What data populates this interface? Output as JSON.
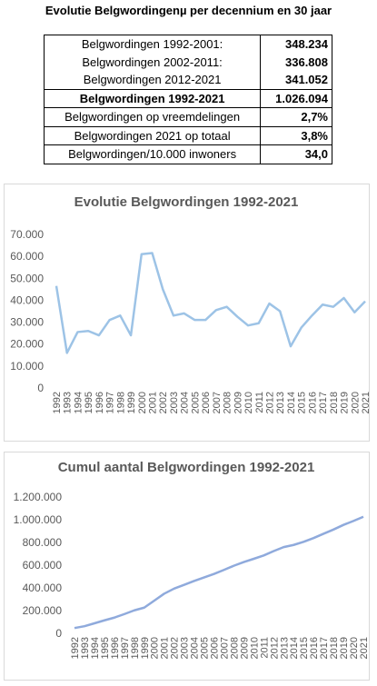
{
  "header": {
    "title": "Evolutie Belgwordingenµ per decennium en 30 jaar"
  },
  "table": {
    "rows": [
      [
        "Belgwordingen 1992-2001:",
        "348.234"
      ],
      [
        "Belgwordingen 2002-2011:",
        "336.808"
      ],
      [
        "Belgwordingen 2012-2021",
        "341.052"
      ],
      [
        "Belgwordingen 1992-2021",
        "1.026.094"
      ],
      [
        "Belgwordingen op vreemdelingen",
        "2,7%"
      ],
      [
        "Belgwordingen 2021 op totaal",
        "3,8%"
      ],
      [
        "Belgwordingen/10.000 inwoners",
        "34,0"
      ]
    ]
  },
  "chart_data": [
    {
      "type": "line",
      "title": "Evolutie Belgwordingen 1992-2021",
      "categories": [
        "1992",
        "1993",
        "1994",
        "1995",
        "1996",
        "1997",
        "1998",
        "1999",
        "2000",
        "2001",
        "2002",
        "2003",
        "2004",
        "2005",
        "2006",
        "2007",
        "2008",
        "2009",
        "2010",
        "2011",
        "2012",
        "2013",
        "2014",
        "2015",
        "2016",
        "2017",
        "2018",
        "2019",
        "2020",
        "2021"
      ],
      "series": [
        {
          "color": "#9dc3e6",
          "values": [
            46500,
            16000,
            25500,
            26000,
            24000,
            31000,
            33000,
            24000,
            61000,
            61500,
            45000,
            33000,
            34000,
            31000,
            31000,
            35500,
            37000,
            32500,
            28500,
            29500,
            38500,
            35000,
            19000,
            27500,
            33000,
            38000,
            37000,
            41000,
            34500,
            39500
          ]
        }
      ],
      "ylim": [
        0,
        70000
      ],
      "yticks": [
        0,
        {
          "value": 10000,
          "label": "10.000"
        },
        {
          "value": 20000,
          "label": "20.000"
        },
        {
          "value": 30000,
          "label": "30.000"
        },
        {
          "value": 40000,
          "label": "40.000"
        },
        {
          "value": 50000,
          "label": "50.000"
        },
        {
          "value": 60000,
          "label": "60.000"
        },
        {
          "value": 70000,
          "label": "70.000"
        }
      ],
      "grid": false
    },
    {
      "type": "line",
      "title": "Cumul aantal Belgwordingen 1992-2021",
      "categories": [
        "1992",
        "1993",
        "1994",
        "1995",
        "1996",
        "1997",
        "1998",
        "1999",
        "2000",
        "2001",
        "2002",
        "2003",
        "2004",
        "2005",
        "2006",
        "2007",
        "2008",
        "2009",
        "2010",
        "2011",
        "2012",
        "2013",
        "2014",
        "2015",
        "2016",
        "2017",
        "2018",
        "2019",
        "2020",
        "2021"
      ],
      "series": [
        {
          "color": "#8faadc",
          "values": [
            46500,
            62500,
            88000,
            114000,
            138000,
            169000,
            202000,
            226000,
            287000,
            348500,
            393500,
            426500,
            460500,
            491500,
            522500,
            558000,
            595000,
            627500,
            656000,
            685500,
            724000,
            759000,
            778000,
            805500,
            838500,
            876500,
            913500,
            954500,
            989000,
            1026094
          ]
        }
      ],
      "ylim": [
        0,
        1200000
      ],
      "yticks": [
        0,
        {
          "value": 200000,
          "label": "200.000"
        },
        {
          "value": 400000,
          "label": "400.000"
        },
        {
          "value": 600000,
          "label": "600.000"
        },
        {
          "value": 800000,
          "label": "800.000"
        },
        {
          "value": 1000000,
          "label": "1.000.000"
        },
        {
          "value": 1200000,
          "label": "1.200.000"
        }
      ],
      "grid": false
    }
  ]
}
